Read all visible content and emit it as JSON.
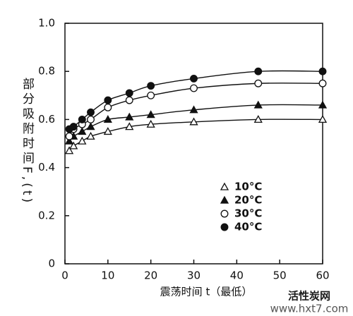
{
  "chart_data": {
    "type": "line",
    "xlabel": "震荡时间 t（最低）",
    "ylabel": "部分吸附时间F,(t)",
    "x": [
      1,
      2,
      4,
      6,
      10,
      15,
      20,
      30,
      45,
      60
    ],
    "series": [
      {
        "name": "10°C",
        "color": "#111111",
        "marker": "triangle-open",
        "values": [
          0.47,
          0.49,
          0.51,
          0.53,
          0.55,
          0.57,
          0.58,
          0.59,
          0.6,
          0.6
        ]
      },
      {
        "name": "20°C",
        "color": "#111111",
        "marker": "triangle",
        "values": [
          0.51,
          0.53,
          0.55,
          0.57,
          0.6,
          0.61,
          0.62,
          0.64,
          0.66,
          0.66
        ]
      },
      {
        "name": "30°C",
        "color": "#111111",
        "marker": "circle-open",
        "values": [
          0.53,
          0.56,
          0.58,
          0.6,
          0.65,
          0.68,
          0.7,
          0.73,
          0.75,
          0.75
        ]
      },
      {
        "name": "40°C",
        "color": "#111111",
        "marker": "circle",
        "values": [
          0.56,
          0.57,
          0.6,
          0.63,
          0.68,
          0.71,
          0.74,
          0.77,
          0.8,
          0.8
        ]
      }
    ],
    "xlim": [
      0,
      60
    ],
    "xticks": [
      0,
      10,
      20,
      30,
      40,
      50,
      60
    ],
    "ylim": [
      0,
      1.0
    ],
    "yticks": [
      0,
      0.2,
      0.4,
      0.6,
      0.8,
      {
        "value": 1.0,
        "label": "1.0"
      }
    ],
    "grid": false,
    "legend": "right",
    "smooth": true
  },
  "watermark": {
    "title": "活性炭网",
    "url": "www.hxt7.com"
  }
}
